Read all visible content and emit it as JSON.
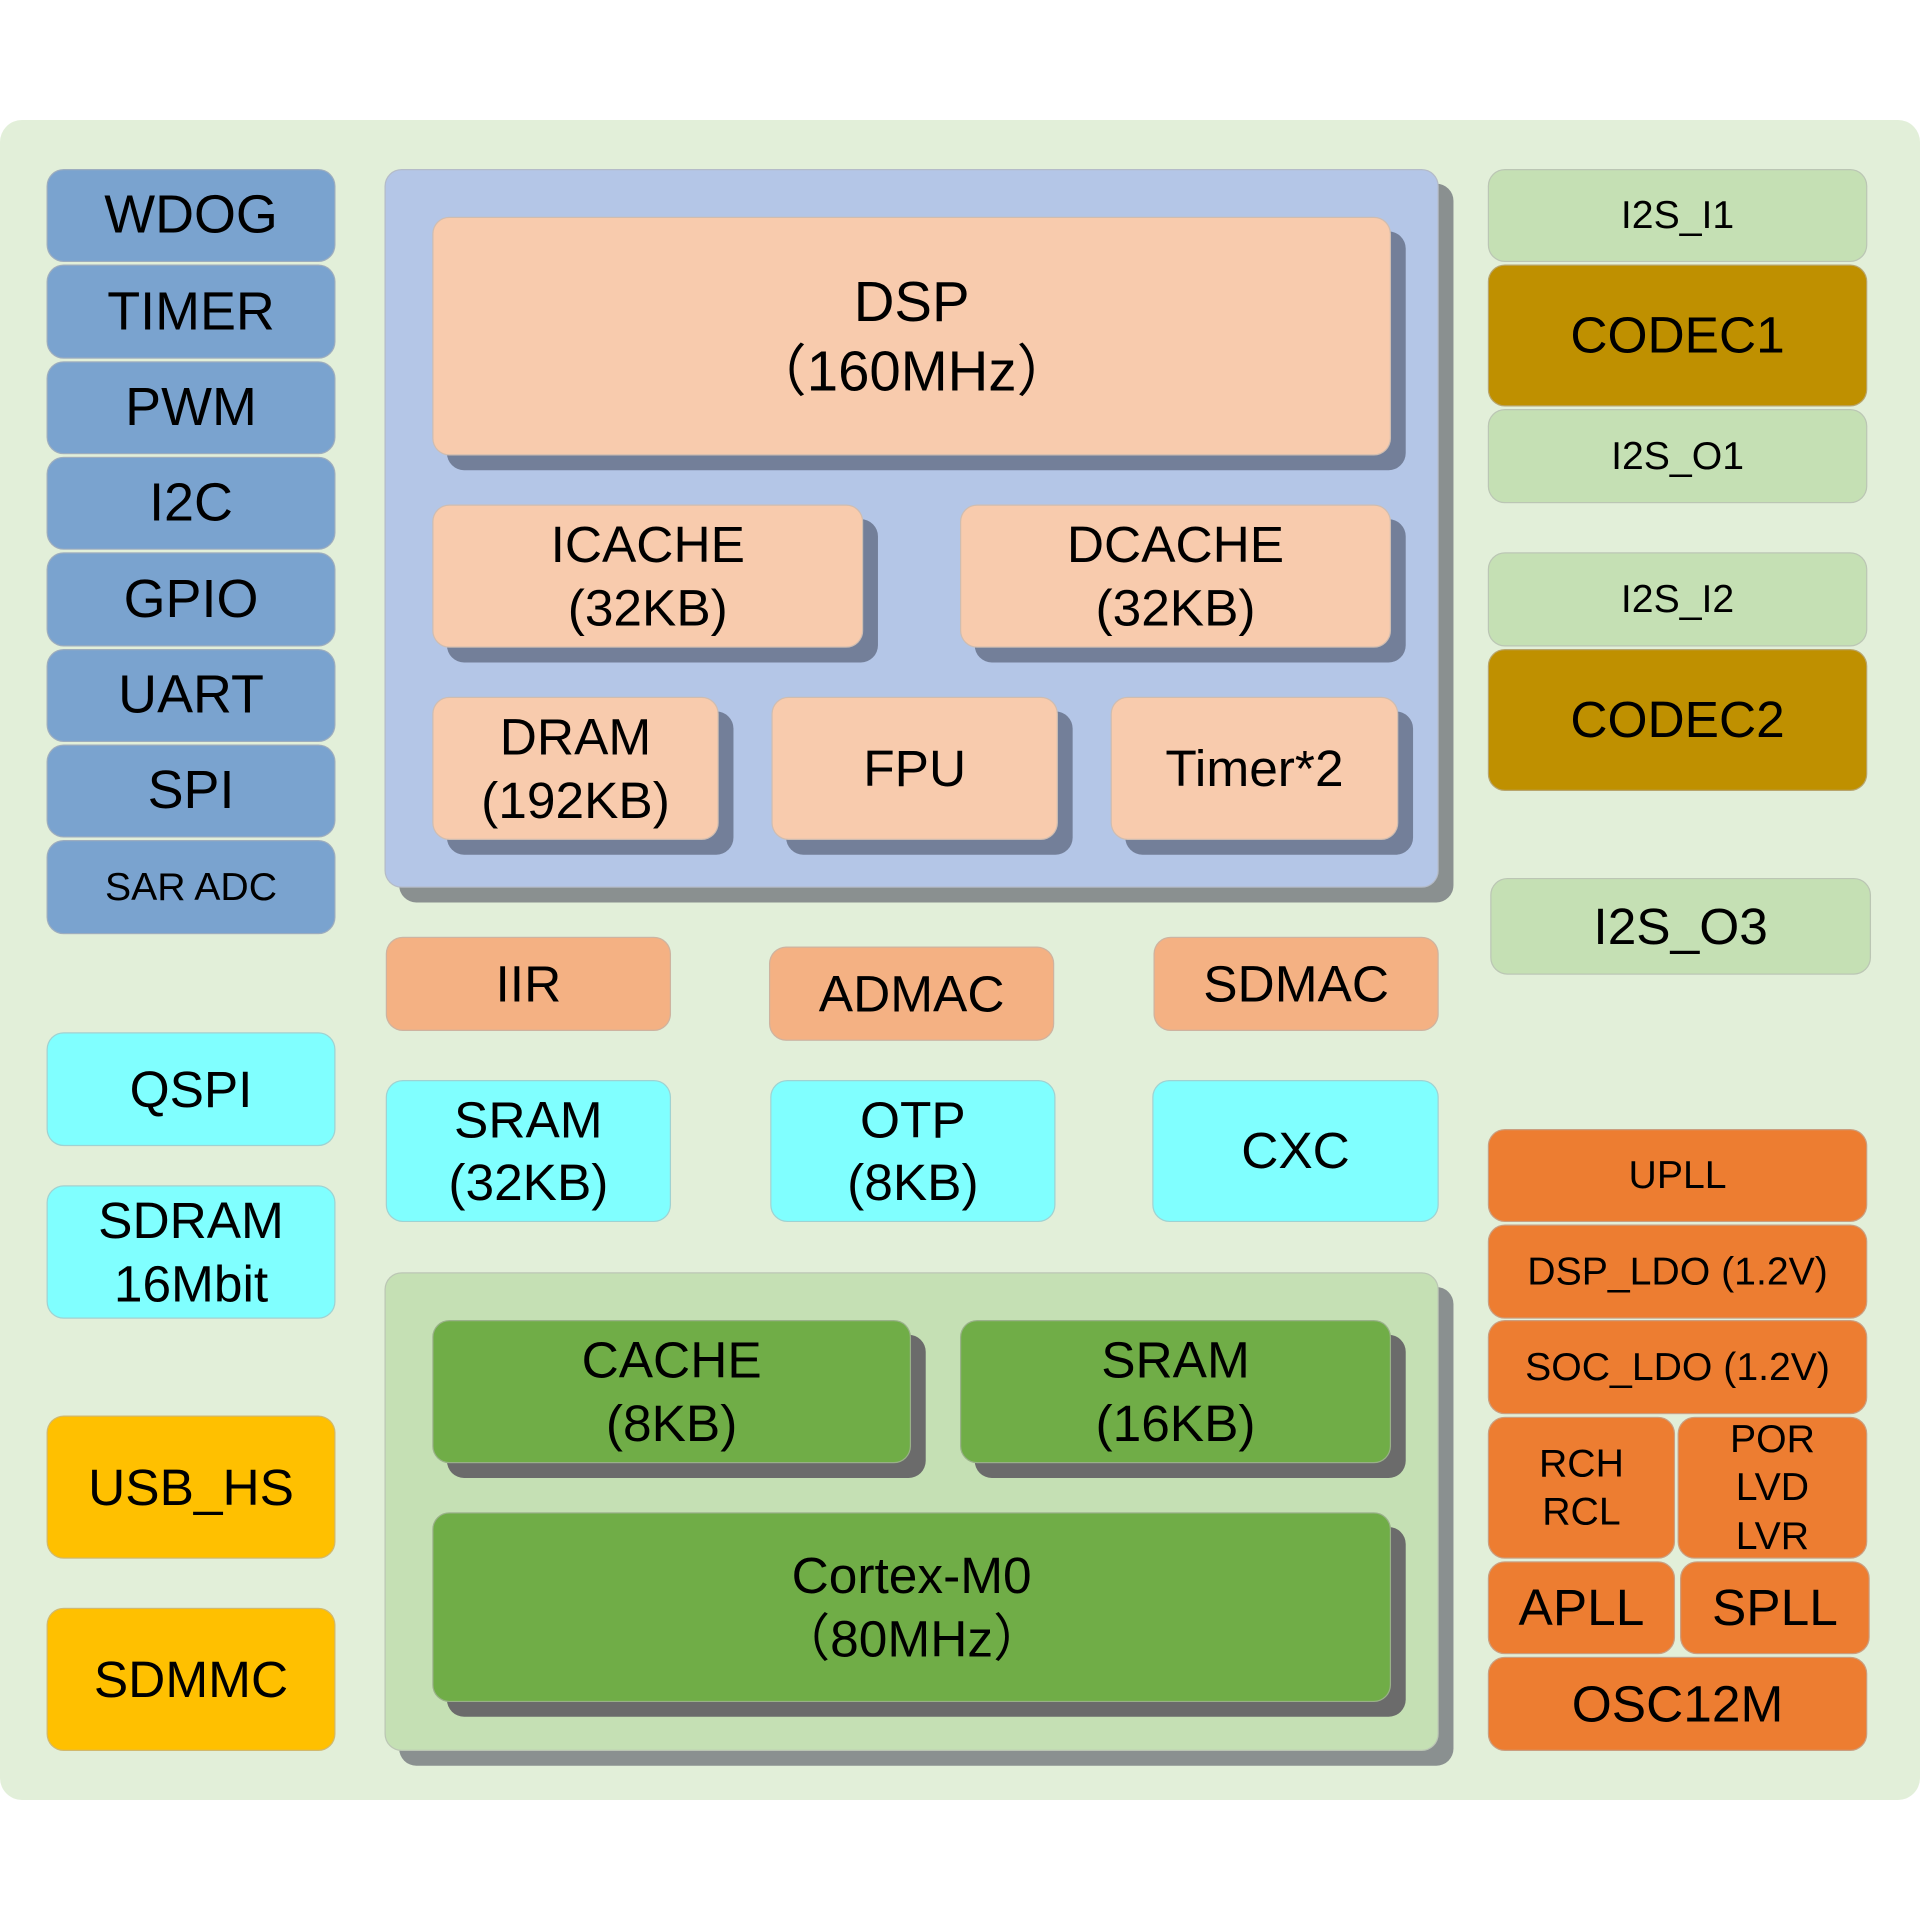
{
  "colors": {
    "background": "#e2efd9",
    "peripheral_blue": "#7aa3cf",
    "dsp_subsystem": "#b4c6e7",
    "dsp_block": "#f8cbad",
    "dma_block": "#f4b183",
    "memory_cyan": "#80ffff",
    "m0_subsystem": "#c5e0b4",
    "m0_block": "#70ad47",
    "usb_yellow": "#ffc000",
    "codec": "#bf9000",
    "i2s": "#c5e0b4",
    "clock_power": "#ed7d31"
  },
  "left_peripherals": [
    "WDOG",
    "TIMER",
    "PWM",
    "I2C",
    "GPIO",
    "UART",
    "SPI",
    "SAR ADC"
  ],
  "left_memory": {
    "qspi": "QSPI",
    "sdram": "SDRAM\n16Mbit"
  },
  "left_io": {
    "usb": "USB_HS",
    "sdmmc": "SDMMC"
  },
  "dsp": {
    "core": "DSP\n（160MHz）",
    "icache": "ICACHE\n(32KB)",
    "dcache": "DCACHE\n(32KB)",
    "dram": "DRAM\n(192KB)",
    "fpu": "FPU",
    "timer": "Timer*2"
  },
  "middle": {
    "iir": "IIR",
    "admac": "ADMAC",
    "sdmac": "SDMAC",
    "sram": "SRAM\n(32KB)",
    "otp": "OTP\n(8KB)",
    "cxc": "CXC"
  },
  "m0": {
    "cache": "CACHE\n(8KB)",
    "sram": "SRAM\n(16KB)",
    "core": "Cortex-M0\n（80MHz）"
  },
  "audio": {
    "i2s_i1": "I2S_I1",
    "codec1": "CODEC1",
    "i2s_o1": "I2S_O1",
    "i2s_i2": "I2S_I2",
    "codec2": "CODEC2",
    "i2s_o3": "I2S_O3"
  },
  "clock": {
    "upll": "UPLL",
    "dsp_ldo": "DSP_LDO (1.2V)",
    "soc_ldo": "SOC_LDO (1.2V)",
    "rch": "RCH\nRCL",
    "por": "POR\nLVD\nLVR",
    "apll": "APLL",
    "spll": "SPLL",
    "osc": "OSC12M"
  }
}
